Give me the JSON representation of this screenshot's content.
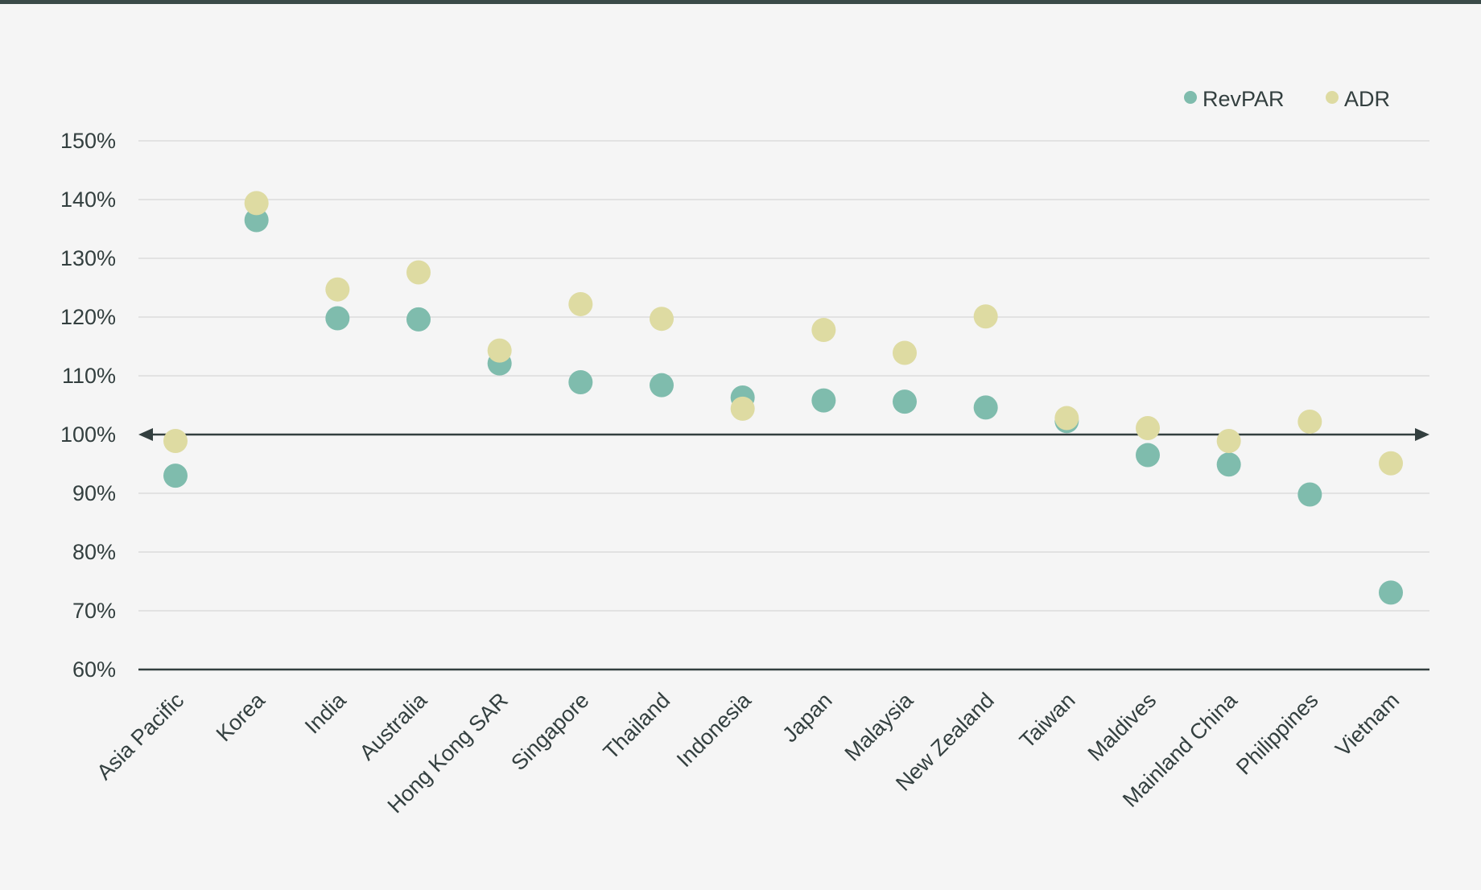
{
  "chart_data": {
    "type": "scatter",
    "title": "",
    "xlabel": "",
    "ylabel": "",
    "ylim": [
      60,
      150
    ],
    "ytick_step": 10,
    "ytick_suffix": "%",
    "yticks": [
      "60%",
      "70%",
      "80%",
      "90%",
      "100%",
      "110%",
      "120%",
      "130%",
      "140%",
      "150%"
    ],
    "reference_line": {
      "value": 100,
      "style": "double-arrow"
    },
    "grid": true,
    "legend_position": "top-right",
    "categories": [
      "Asia Pacific",
      "Korea",
      "India",
      "Australia",
      "Hong Kong SAR",
      "Singapore",
      "Thailand",
      "Indonesia",
      "Japan",
      "Malaysia",
      "New Zealand",
      "Taiwan",
      "Maldives",
      "Mainland China",
      "Philippines",
      "Vietnam"
    ],
    "series": [
      {
        "name": "RevPAR",
        "color": "#7fbcad",
        "values": [
          93,
          136.5,
          119.8,
          119.6,
          112.1,
          108.9,
          108.4,
          106.3,
          105.8,
          105.6,
          104.6,
          102.3,
          96.5,
          94.9,
          89.8,
          73.1
        ]
      },
      {
        "name": "ADR",
        "color": "#dedba2",
        "values": [
          98.9,
          139.4,
          124.7,
          127.6,
          114.3,
          122.2,
          119.7,
          104.4,
          117.8,
          113.9,
          120.1,
          102.8,
          101.1,
          98.9,
          102.2,
          95.1
        ]
      }
    ]
  },
  "colors": {
    "background": "#f5f5f5",
    "top_rule": "#3a4a48",
    "text": "#333f3f",
    "gridline": "#dcdcdc",
    "axis": "#333f3f"
  }
}
